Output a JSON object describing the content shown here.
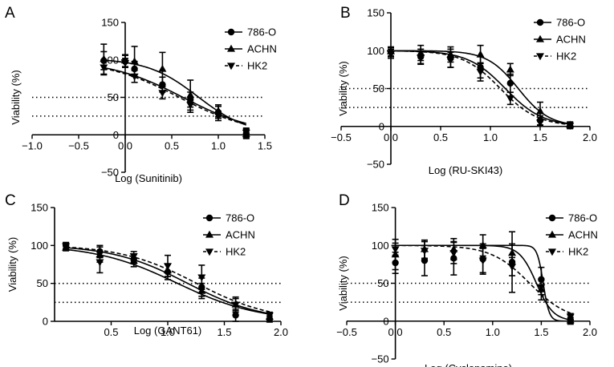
{
  "chart_data": [
    {
      "type": "line",
      "panel": "A",
      "xlabel": "Log (Sunitinib)",
      "ylabel": "Viability (%)",
      "xlim": [
        -1.0,
        1.5
      ],
      "ylim": [
        -50,
        150
      ],
      "xticks": [
        -1.0,
        -0.5,
        0.0,
        0.5,
        1.0,
        1.5
      ],
      "xtick_labels": [
        "−1.0",
        "−0.5",
        "0.0",
        "0.5",
        "1.0",
        "1.5"
      ],
      "yticks": [
        -50,
        0,
        50,
        100,
        150
      ],
      "ytick_labels": [
        "−50",
        "0",
        "50",
        "100",
        "150"
      ],
      "reference_lines": [
        50,
        25
      ],
      "legend_position": "top-right",
      "series": [
        {
          "name": "786-O",
          "marker": "circle",
          "line": "solid",
          "x": [
            0.0,
            -0.23,
            0.1,
            0.4,
            0.7,
            1.0,
            1.3
          ],
          "y": [
            98,
            99,
            88,
            67,
            47,
            30,
            2
          ],
          "err": [
            8,
            12,
            10,
            10,
            10,
            8,
            6
          ],
          "curve": {
            "top": 100,
            "bottom": 0,
            "ic50": 0.62,
            "hill": 1.1
          }
        },
        {
          "name": "ACHN",
          "marker": "triangle",
          "line": "solid",
          "x": [
            0.0,
            -0.23,
            0.1,
            0.4,
            0.7,
            1.0,
            1.3
          ],
          "y": [
            99,
            101,
            98,
            88,
            53,
            32,
            1
          ],
          "err": [
            8,
            20,
            20,
            22,
            20,
            8,
            6
          ],
          "curve": {
            "top": 102,
            "bottom": 0,
            "ic50": 0.78,
            "hill": 1.6
          }
        },
        {
          "name": "HK2",
          "marker": "down-triangle",
          "line": "dashed",
          "x": [
            0.0,
            -0.23,
            0.1,
            0.4,
            0.7,
            1.0,
            1.3
          ],
          "y": [
            96,
            90,
            78,
            56,
            40,
            25,
            3
          ],
          "err": [
            6,
            10,
            8,
            8,
            10,
            6,
            6
          ],
          "curve": {
            "top": 100,
            "bottom": 0,
            "ic50": 0.58,
            "hill": 1.1
          }
        }
      ]
    },
    {
      "type": "line",
      "panel": "B",
      "xlabel": "Log (RU-SKI43)",
      "ylabel": "Viability (%)",
      "xlim": [
        -0.5,
        2.0
      ],
      "ylim": [
        -50,
        150
      ],
      "xticks": [
        -0.5,
        0.0,
        0.5,
        1.0,
        1.5,
        2.0
      ],
      "xtick_labels": [
        "−0.5",
        "0.0",
        "0.5",
        "1.0",
        "1.5",
        "2.0"
      ],
      "yticks": [
        -50,
        0,
        50,
        100,
        150
      ],
      "ytick_labels": [
        "−50",
        "0",
        "50",
        "100",
        "150"
      ],
      "reference_lines": [
        50,
        25
      ],
      "legend_position": "top-right",
      "series": [
        {
          "name": "786-O",
          "marker": "circle",
          "line": "solid",
          "x": [
            0.0,
            0.3,
            0.6,
            0.9,
            1.2,
            1.5,
            1.8
          ],
          "y": [
            98,
            92,
            90,
            78,
            57,
            8,
            1
          ],
          "err": [
            6,
            10,
            12,
            14,
            12,
            6,
            4
          ],
          "curve": {
            "top": 100,
            "bottom": 0,
            "ic50": 1.15,
            "hill": 2.3
          }
        },
        {
          "name": "ACHN",
          "marker": "triangle",
          "line": "solid",
          "x": [
            0.0,
            0.3,
            0.6,
            0.9,
            1.2,
            1.5,
            1.8
          ],
          "y": [
            99,
            97,
            95,
            95,
            75,
            20,
            2
          ],
          "err": [
            6,
            10,
            10,
            12,
            8,
            12,
            4
          ],
          "curve": {
            "top": 100,
            "bottom": 0,
            "ic50": 1.28,
            "hill": 2.8
          }
        },
        {
          "name": "HK2",
          "marker": "down-triangle",
          "line": "dashed",
          "x": [
            0.0,
            0.3,
            0.6,
            0.9,
            1.2,
            1.5,
            1.8
          ],
          "y": [
            96,
            91,
            88,
            72,
            37,
            5,
            1
          ],
          "err": [
            6,
            8,
            10,
            12,
            8,
            4,
            3
          ],
          "curve": {
            "top": 100,
            "bottom": 0,
            "ic50": 1.1,
            "hill": 2.3
          }
        }
      ]
    },
    {
      "type": "line",
      "panel": "C",
      "xlabel": "Log (GANT61)",
      "ylabel": "Viability (%)",
      "xlim": [
        0.0,
        2.0
      ],
      "ylim": [
        0,
        150
      ],
      "xticks": [
        0.5,
        1.0,
        1.5,
        2.0
      ],
      "xtick_labels": [
        "0.5",
        "1.0",
        "1.5",
        "2.0"
      ],
      "yticks": [
        0,
        50,
        100,
        150
      ],
      "ytick_labels": [
        "0",
        "50",
        "100",
        "150"
      ],
      "reference_lines": [
        50,
        25
      ],
      "legend_position": "top-right",
      "series": [
        {
          "name": "786-O",
          "marker": "circle",
          "line": "solid",
          "x": [
            0.1,
            0.4,
            0.7,
            1.0,
            1.3,
            1.6,
            1.9
          ],
          "y": [
            100,
            92,
            82,
            65,
            45,
            8,
            3
          ],
          "err": [
            4,
            8,
            6,
            10,
            12,
            8,
            4
          ],
          "curve": {
            "top": 101,
            "bottom": 0,
            "ic50": 1.17,
            "hill": 1.3
          }
        },
        {
          "name": "ACHN",
          "marker": "triangle",
          "line": "solid",
          "x": [
            0.1,
            0.4,
            0.7,
            1.0,
            1.3,
            1.6,
            1.9
          ],
          "y": [
            97,
            88,
            80,
            67,
            40,
            22,
            6
          ],
          "err": [
            4,
            10,
            8,
            8,
            10,
            8,
            4
          ],
          "curve": {
            "top": 101,
            "bottom": 0,
            "ic50": 1.08,
            "hill": 1.2
          }
        },
        {
          "name": "HK2",
          "marker": "down-triangle",
          "line": "dashed",
          "x": [
            0.1,
            0.4,
            0.7,
            1.0,
            1.3,
            1.6,
            1.9
          ],
          "y": [
            99,
            78,
            86,
            73,
            58,
            22,
            8
          ],
          "err": [
            4,
            14,
            6,
            14,
            16,
            10,
            4
          ],
          "curve": {
            "top": 101,
            "bottom": 0,
            "ic50": 1.25,
            "hill": 1.3
          }
        }
      ]
    },
    {
      "type": "line",
      "panel": "D",
      "xlabel": "Log (Cyclopamine)",
      "ylabel": "Viability (%)",
      "xlim": [
        -0.5,
        2.0
      ],
      "ylim": [
        -50,
        150
      ],
      "xticks": [
        -0.5,
        0.0,
        0.5,
        1.0,
        1.5,
        2.0
      ],
      "xtick_labels": [
        "−0.5",
        "0.0",
        "0.5",
        "1.0",
        "1.5",
        "2.0"
      ],
      "yticks": [
        -50,
        0,
        50,
        100,
        150
      ],
      "ytick_labels": [
        "−50",
        "0",
        "50",
        "100",
        "150"
      ],
      "reference_lines": [
        50,
        25
      ],
      "legend_position": "top-right",
      "series": [
        {
          "name": "786-O",
          "marker": "circle",
          "line": "solid",
          "x": [
            0.0,
            0.3,
            0.6,
            0.9,
            1.2,
            1.5,
            1.8
          ],
          "y": [
            77,
            80,
            83,
            82,
            78,
            55,
            2
          ],
          "err": [
            14,
            20,
            22,
            20,
            40,
            16,
            6
          ],
          "curve": {
            "top": 100,
            "bottom": 0,
            "ic50": 1.52,
            "hill": 14
          }
        },
        {
          "name": "ACHN",
          "marker": "triangle",
          "line": "solid",
          "x": [
            0.0,
            0.3,
            0.6,
            0.9,
            1.2,
            1.5,
            1.8
          ],
          "y": [
            88,
            95,
            95,
            100,
            90,
            42,
            1
          ],
          "err": [
            20,
            12,
            14,
            14,
            12,
            14,
            4
          ],
          "curve": {
            "top": 100,
            "bottom": 0,
            "ic50": 1.45,
            "hill": 5
          }
        },
        {
          "name": "HK2",
          "marker": "down-triangle",
          "line": "dashed",
          "x": [
            0.0,
            0.3,
            0.6,
            0.9,
            1.2,
            1.5,
            1.8
          ],
          "y": [
            95,
            93,
            90,
            80,
            72,
            45,
            6
          ],
          "err": [
            8,
            12,
            14,
            16,
            12,
            10,
            4
          ],
          "curve": {
            "top": 100,
            "bottom": 0,
            "ic50": 1.38,
            "hill": 2.2
          }
        }
      ]
    }
  ]
}
